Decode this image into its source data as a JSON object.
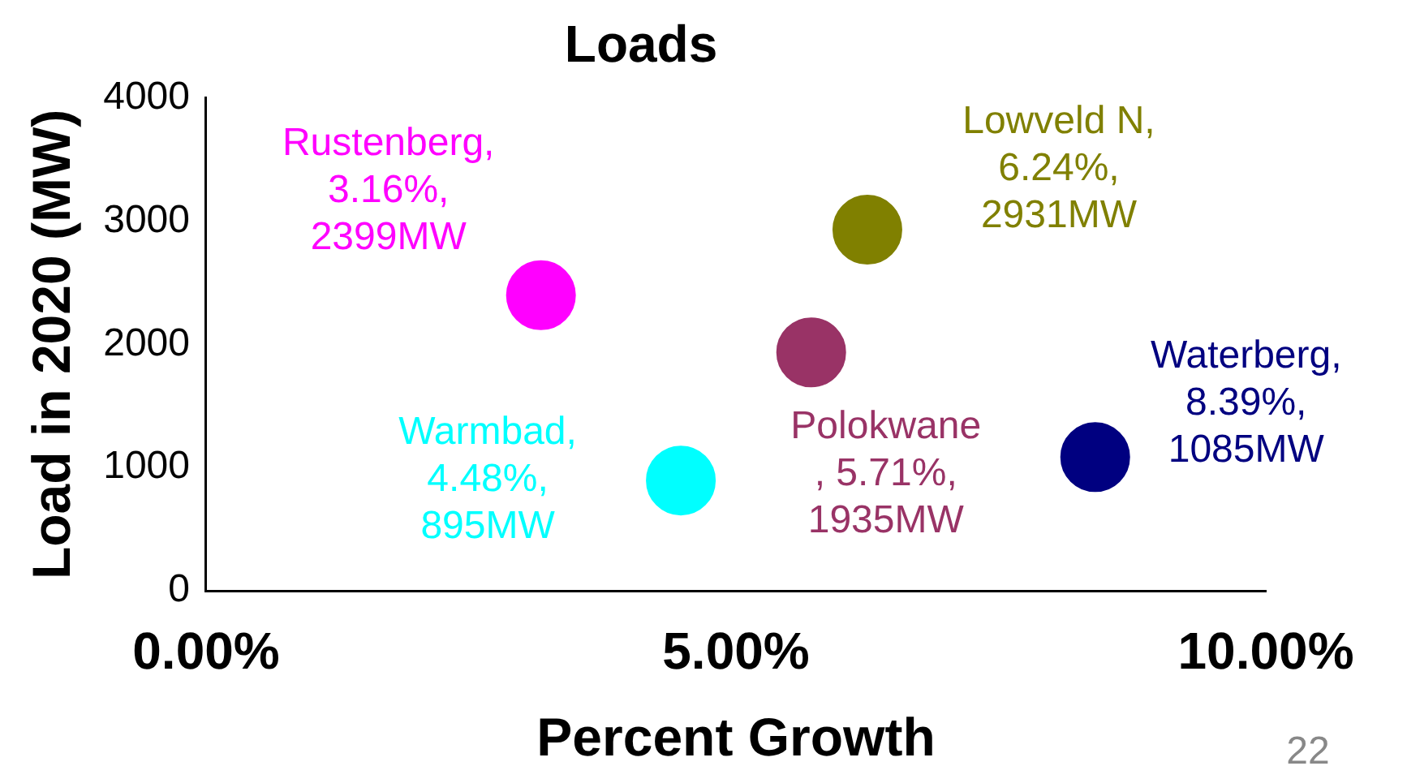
{
  "chart_data": {
    "type": "scatter",
    "title": "Loads",
    "xlabel": "Percent Growth",
    "ylabel": "Load in 2020 (MW)",
    "x": [
      3.16,
      4.48,
      5.71,
      6.24,
      8.39
    ],
    "values": [
      2399,
      895,
      1935,
      2931,
      1085
    ],
    "colors": [
      "#ff00ff",
      "#00ffff",
      "#993366",
      "#808000",
      "#000080"
    ],
    "marker": "circle",
    "grid": false,
    "legend": false,
    "xlim": [
      0,
      10
    ],
    "xticks": [
      {
        "value": 0,
        "label": "0.00%"
      },
      {
        "value": 5,
        "label": "5.00%"
      },
      {
        "value": 10,
        "label": "10.00%"
      }
    ],
    "ylim": [
      0,
      4000
    ],
    "yticks": [
      0,
      1000,
      2000,
      3000,
      4000
    ],
    "annotations": [
      {
        "text": "Rustenberg,\n3.16%,\n2399MW",
        "x": 3.16,
        "y": 2399
      },
      {
        "text": "Warmbad,\n4.48%,\n895MW",
        "x": 4.48,
        "y": 895
      },
      {
        "text": "Polokwane\n, 5.71%,\n1935MW",
        "x": 5.71,
        "y": 1935
      },
      {
        "text": "Lowveld N,\n6.24%,\n2931MW",
        "x": 6.24,
        "y": 2931
      },
      {
        "text": "Waterberg,\n8.39%,\n1085MW",
        "x": 8.39,
        "y": 1085
      },
      "22"
    ]
  }
}
